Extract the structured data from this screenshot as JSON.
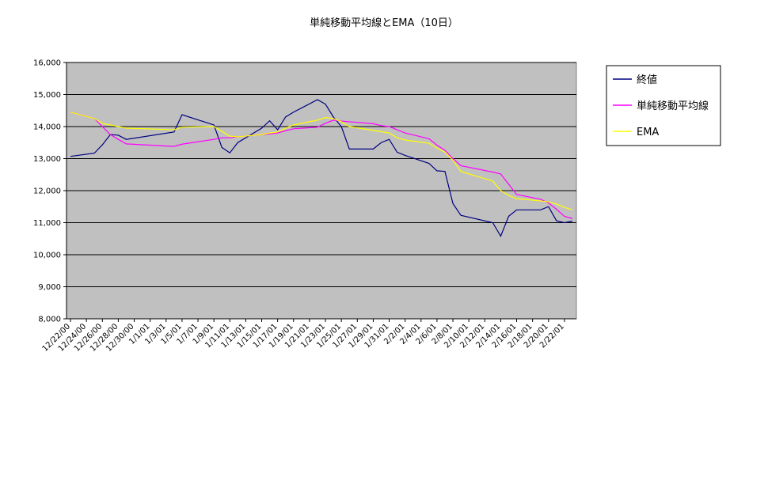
{
  "chart_data": {
    "type": "line",
    "title": "単純移動平均線とEMA（10日）",
    "x": [
      "12/22/00",
      "12/25/00",
      "12/26/00",
      "12/27/00",
      "12/28/00",
      "12/29/00",
      "1/4/01",
      "1/5/01",
      "1/9/01",
      "1/10/01",
      "1/11/01",
      "1/12/01",
      "1/15/01",
      "1/16/01",
      "1/17/01",
      "1/18/01",
      "1/19/01",
      "1/22/01",
      "1/23/01",
      "1/24/01",
      "1/25/01",
      "1/26/01",
      "1/29/01",
      "1/30/01",
      "1/31/01",
      "2/1/01",
      "2/2/01",
      "2/5/01",
      "2/6/01",
      "2/7/01",
      "2/8/01",
      "2/9/01",
      "2/13/01",
      "2/14/01",
      "2/15/01",
      "2/16/01",
      "2/19/01",
      "2/20/01",
      "2/21/01",
      "2/22/01",
      "2/23/01"
    ],
    "series": [
      {
        "name": "終値",
        "color": "#000080",
        "values": [
          13070,
          13170,
          13430,
          13750,
          13730,
          13600,
          13830,
          14370,
          14050,
          13350,
          13180,
          13500,
          13950,
          14180,
          13900,
          14300,
          14450,
          14840,
          14700,
          14300,
          14000,
          13300,
          13300,
          13500,
          13600,
          13200,
          13100,
          12850,
          12620,
          12600,
          11600,
          11230,
          11000,
          10580,
          11200,
          11400,
          11400,
          11500,
          11060,
          11000,
          11050
        ]
      },
      {
        "name": "単純移動平均線",
        "color": "#ff00ff",
        "values": [
          14450,
          14250,
          14000,
          13750,
          13600,
          13460,
          13380,
          13450,
          13600,
          13650,
          13650,
          13680,
          13750,
          13770,
          13800,
          13870,
          13930,
          13980,
          14100,
          14200,
          14170,
          14150,
          14090,
          14030,
          14000,
          13900,
          13800,
          13620,
          13420,
          13260,
          13000,
          12780,
          12580,
          12520,
          12200,
          11880,
          11730,
          11620,
          11420,
          11200,
          11130
        ]
      },
      {
        "name": "EMA",
        "color": "#ffff00",
        "values": [
          14450,
          14250,
          14100,
          14050,
          14000,
          13950,
          13900,
          13980,
          14000,
          13850,
          13700,
          13680,
          13750,
          13800,
          13830,
          13950,
          14050,
          14200,
          14280,
          14250,
          14150,
          14000,
          13880,
          13840,
          13800,
          13650,
          13580,
          13480,
          13330,
          13200,
          12950,
          12600,
          12300,
          12000,
          11850,
          11750,
          11680,
          11650,
          11580,
          11480,
          11400
        ]
      }
    ],
    "xlim": [
      "12/22/00",
      "2/23/01"
    ],
    "xticks": [
      "12/22/00",
      "12/24/00",
      "12/26/00",
      "12/28/00",
      "12/30/00",
      "1/1/01",
      "1/3/01",
      "1/5/01",
      "1/7/01",
      "1/9/01",
      "1/11/01",
      "1/13/01",
      "1/15/01",
      "1/17/01",
      "1/19/01",
      "1/21/01",
      "1/23/01",
      "1/25/01",
      "1/27/01",
      "1/29/01",
      "1/31/01",
      "2/2/01",
      "2/4/01",
      "2/6/01",
      "2/8/01",
      "2/10/01",
      "2/12/01",
      "2/14/01",
      "2/16/01",
      "2/18/01",
      "2/20/01",
      "2/22/01"
    ],
    "ylim": [
      8000,
      16000
    ],
    "yticks": [
      {
        "value": 8000,
        "label": "8,000"
      },
      {
        "value": 9000,
        "label": "9,000"
      },
      {
        "value": 10000,
        "label": "10,000"
      },
      {
        "value": 11000,
        "label": "11,000"
      },
      {
        "value": 12000,
        "label": "12,000"
      },
      {
        "value": 13000,
        "label": "13,000"
      },
      {
        "value": 14000,
        "label": "14,000"
      },
      {
        "value": 15000,
        "label": "15,000"
      },
      {
        "value": 16000,
        "label": "16,000"
      }
    ],
    "grid": true,
    "background": "#c0c0c0",
    "legend": "right"
  }
}
